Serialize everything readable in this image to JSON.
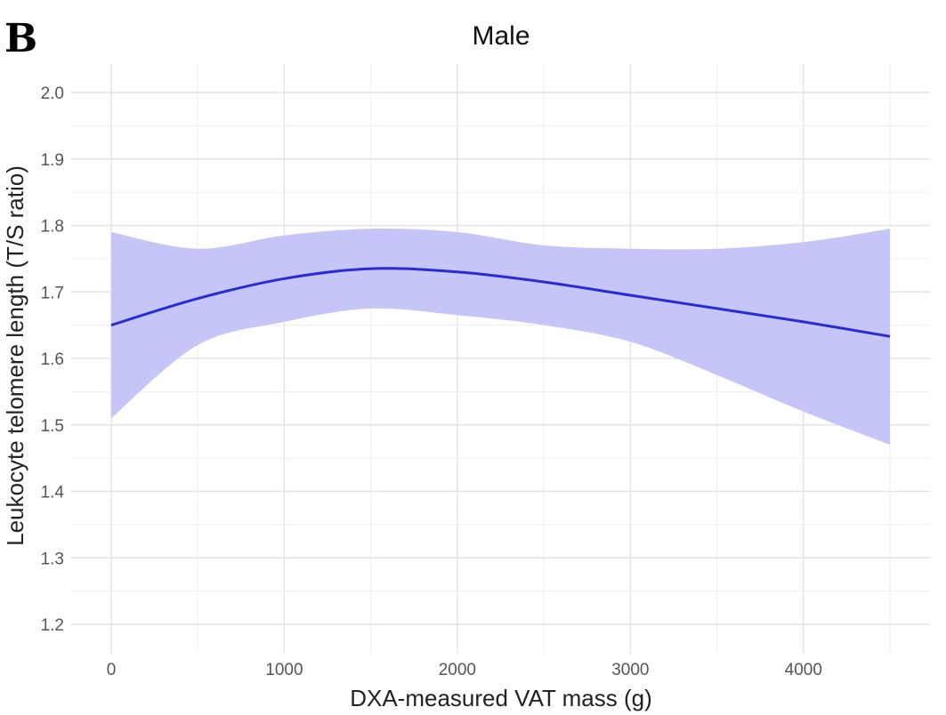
{
  "panel_label": "B",
  "chart_data": {
    "type": "line",
    "title": "Male",
    "xlabel": "DXA-measured VAT mass (g)",
    "ylabel": "Leukocyte telomere length (T/S ratio)",
    "xlim": [
      0,
      4500
    ],
    "ylim": [
      1.2,
      2.0
    ],
    "x_ticks": [
      0,
      1000,
      2000,
      3000,
      4000
    ],
    "x_tick_labels": [
      "0",
      "1000",
      "2000",
      "3000",
      "4000"
    ],
    "y_ticks": [
      1.2,
      1.3,
      1.4,
      1.5,
      1.6,
      1.7,
      1.8,
      1.9,
      2.0
    ],
    "y_tick_labels": [
      "1.2",
      "1.3",
      "1.4",
      "1.5",
      "1.6",
      "1.7",
      "1.8",
      "1.9",
      "2.0"
    ],
    "grid": true,
    "legend": "none",
    "colors": {
      "line": "#2b2bd4",
      "ribbon": "#c2c2f7",
      "grid_major": "#e3e3e3",
      "grid_minor": "#efefef"
    },
    "series": [
      {
        "x": [
          0,
          500,
          1000,
          1500,
          2000,
          2500,
          3000,
          3500,
          4000,
          4500
        ],
        "y": [
          1.65,
          1.69,
          1.72,
          1.735,
          1.73,
          1.715,
          1.695,
          1.675,
          1.655,
          1.633
        ],
        "lower": [
          1.51,
          1.62,
          1.655,
          1.675,
          1.665,
          1.65,
          1.625,
          1.575,
          1.52,
          1.47
        ],
        "upper": [
          1.79,
          1.765,
          1.785,
          1.795,
          1.79,
          1.77,
          1.765,
          1.765,
          1.775,
          1.795
        ]
      }
    ]
  }
}
